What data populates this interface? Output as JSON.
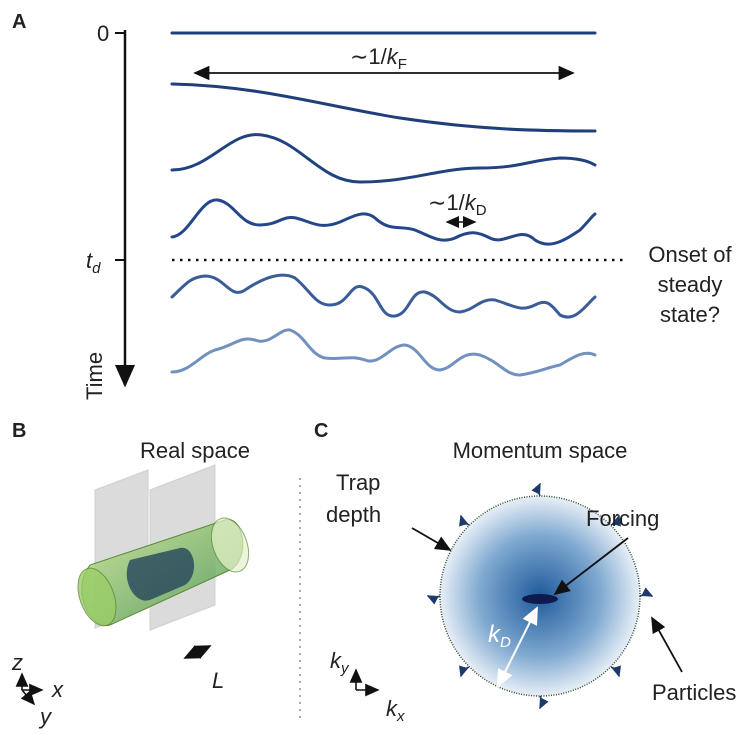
{
  "panel_a": {
    "label": "A",
    "axis_zero": "0",
    "axis_td": {
      "var": "t",
      "sub": "d"
    },
    "axis_title": "Time",
    "fermi_scale": {
      "prefix": "∼1/",
      "var": "k",
      "sub": "F"
    },
    "disorder_scale": {
      "prefix": "∼1/",
      "var": "k",
      "sub": "D"
    },
    "onset": [
      "Onset of",
      "steady",
      "state?"
    ]
  },
  "panel_b": {
    "label": "B",
    "title": "Real space",
    "axis_z": "z",
    "axis_x": "x",
    "axis_y": "y",
    "length": "L"
  },
  "panel_c": {
    "label": "C",
    "title": "Momentum space",
    "trap": [
      "Trap",
      "depth"
    ],
    "forcing": "Forcing",
    "kd": {
      "var": "k",
      "sub": "D"
    },
    "particles": "Particles",
    "axis_ky": {
      "var": "k",
      "sub": "y"
    },
    "axis_kx": {
      "var": "k",
      "sub": "x"
    }
  }
}
